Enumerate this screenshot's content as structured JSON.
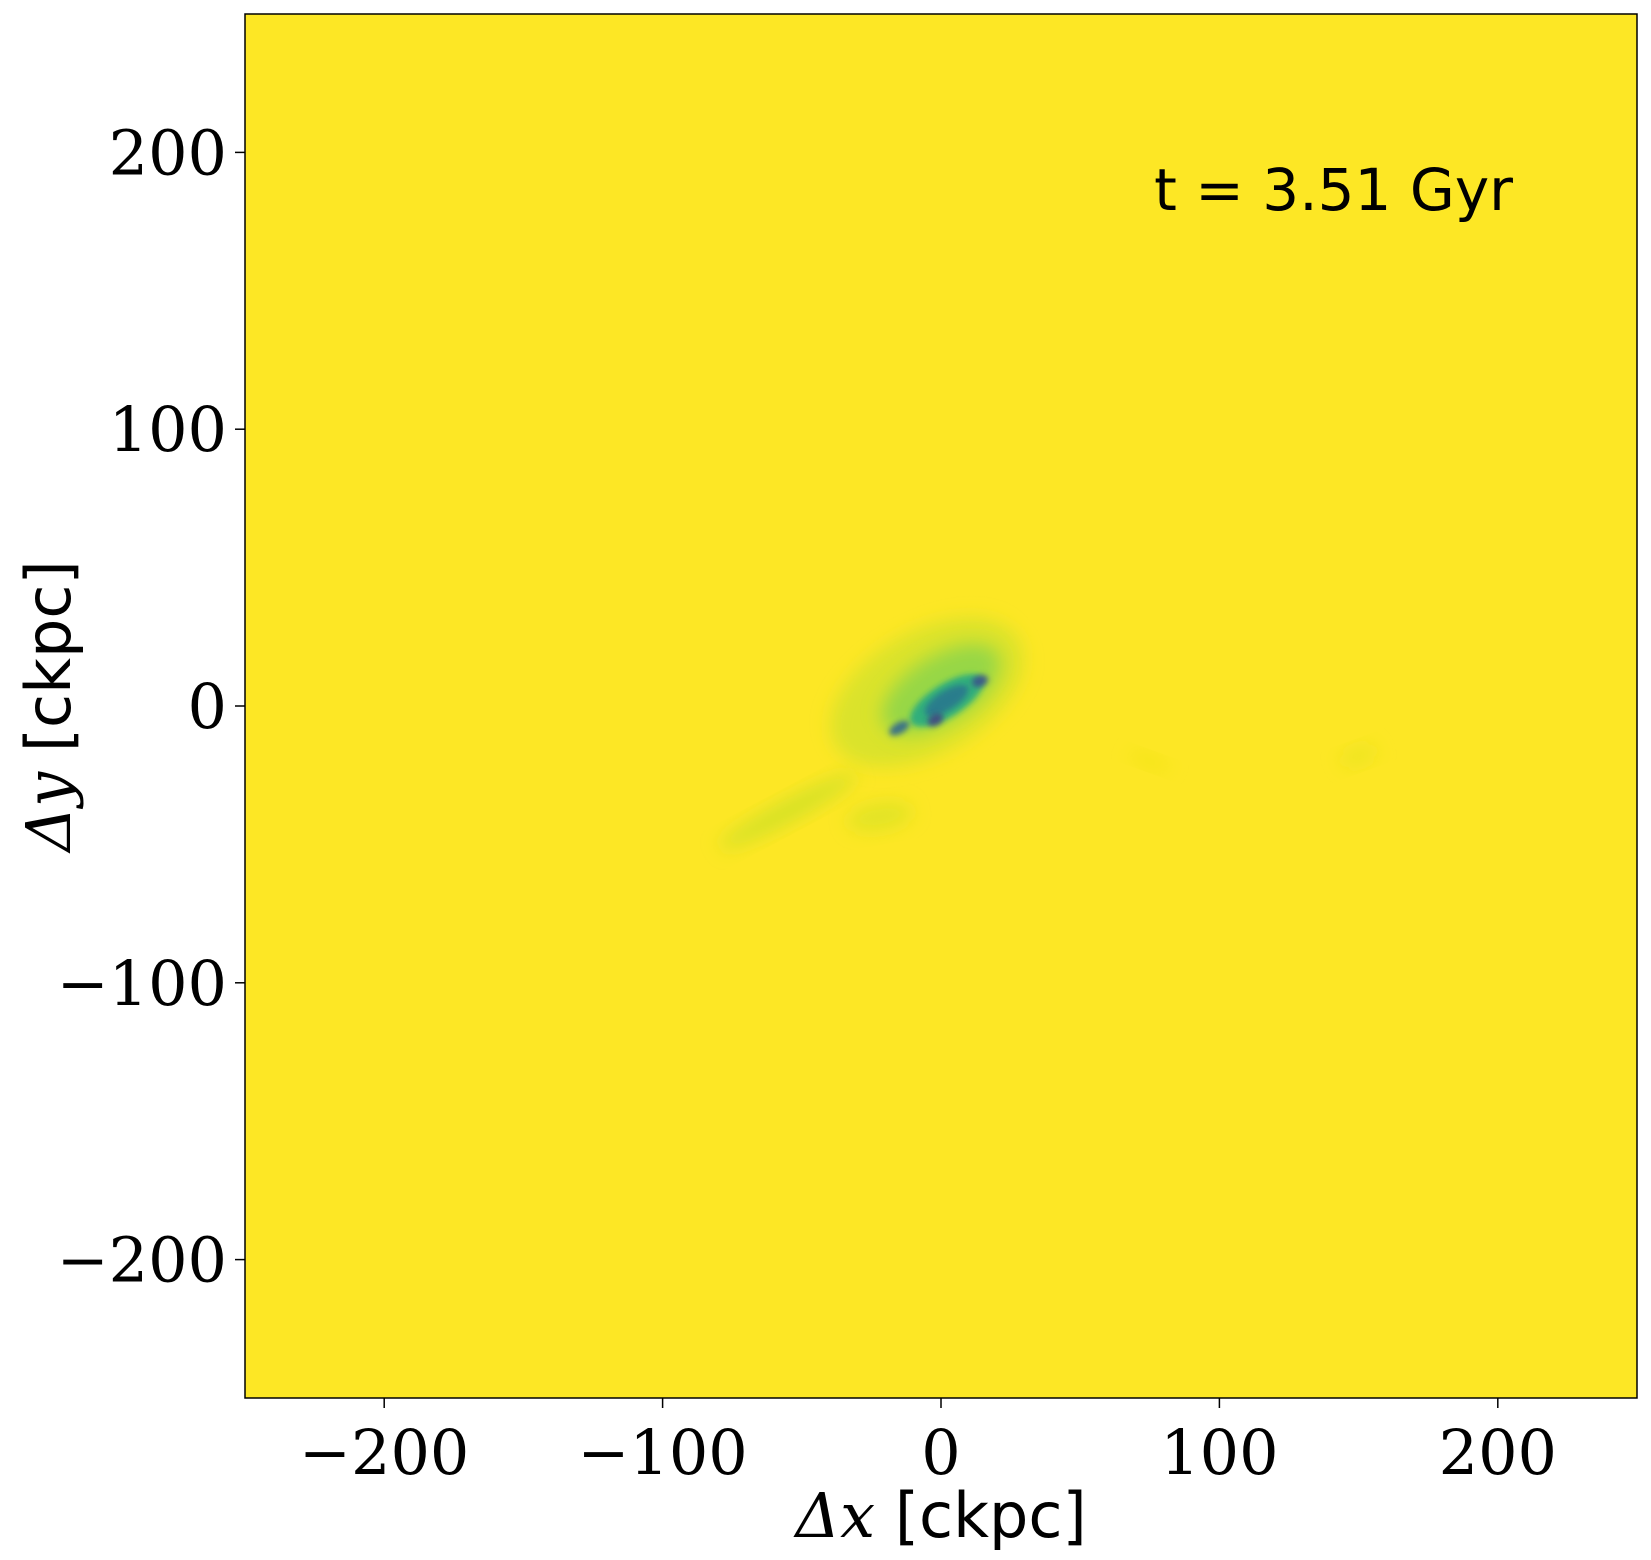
{
  "chart_data": {
    "type": "heatmap",
    "title": "",
    "xlabel": "Δx [ckpc]",
    "ylabel": "Δy [ckpc]",
    "xlabel_parts": {
      "symbol": "Δx",
      "unit": "[ckpc]"
    },
    "ylabel_parts": {
      "symbol": "Δy",
      "unit": "[ckpc]"
    },
    "xlim": [
      -250,
      250
    ],
    "ylim": [
      -250,
      250
    ],
    "xticks": [
      -200,
      -100,
      0,
      100,
      200
    ],
    "yticks": [
      200,
      100,
      0,
      -100,
      -200
    ],
    "xtick_labels": [
      "−200",
      "−100",
      "0",
      "100",
      "200"
    ],
    "ytick_labels": [
      "200",
      "100",
      "0",
      "−100",
      "−200"
    ],
    "grid": false,
    "colormap": "viridis",
    "background_color": "#fde725",
    "annotation": {
      "text": "t = 3.51 Gyr",
      "position": "top-right"
    },
    "features": [
      {
        "kind": "halo",
        "x": -5,
        "y": 5,
        "rx": 38,
        "ry": 22,
        "angle": 30,
        "color": "#bde030",
        "opacity": 0.55
      },
      {
        "kind": "halo",
        "x": 0,
        "y": 6,
        "rx": 24,
        "ry": 12,
        "angle": 32,
        "color": "#7ad151",
        "opacity": 0.7
      },
      {
        "kind": "core",
        "x": 2,
        "y": 2,
        "rx": 15,
        "ry": 6,
        "angle": 32,
        "color": "#22a884",
        "opacity": 0.85
      },
      {
        "kind": "core",
        "x": 2,
        "y": 2,
        "rx": 9,
        "ry": 3.5,
        "angle": 32,
        "color": "#2a788e",
        "opacity": 0.9
      },
      {
        "kind": "knot",
        "x": -15,
        "y": -8,
        "rx": 4,
        "ry": 2,
        "angle": 30,
        "color": "#31688e",
        "opacity": 0.9
      },
      {
        "kind": "knot",
        "x": 14,
        "y": 9,
        "rx": 3,
        "ry": 2,
        "angle": 20,
        "color": "#3b528b",
        "opacity": 0.9
      },
      {
        "kind": "knot",
        "x": -2,
        "y": -5,
        "rx": 3,
        "ry": 2,
        "angle": 30,
        "color": "#443983",
        "opacity": 0.8
      },
      {
        "kind": "streamer",
        "x": -55,
        "y": -38,
        "rx": 28,
        "ry": 4,
        "angle": 28,
        "color": "#b5de2b",
        "opacity": 0.55
      },
      {
        "kind": "streamer",
        "x": -22,
        "y": -40,
        "rx": 12,
        "ry": 5,
        "angle": 10,
        "color": "#c2df23",
        "opacity": 0.45
      },
      {
        "kind": "faint",
        "x": 150,
        "y": -18,
        "rx": 7,
        "ry": 3,
        "angle": 20,
        "color": "#e0e321",
        "opacity": 0.6
      },
      {
        "kind": "faint",
        "x": 75,
        "y": -20,
        "rx": 8,
        "ry": 2,
        "angle": -20,
        "color": "#e8e419",
        "opacity": 0.5
      }
    ]
  }
}
